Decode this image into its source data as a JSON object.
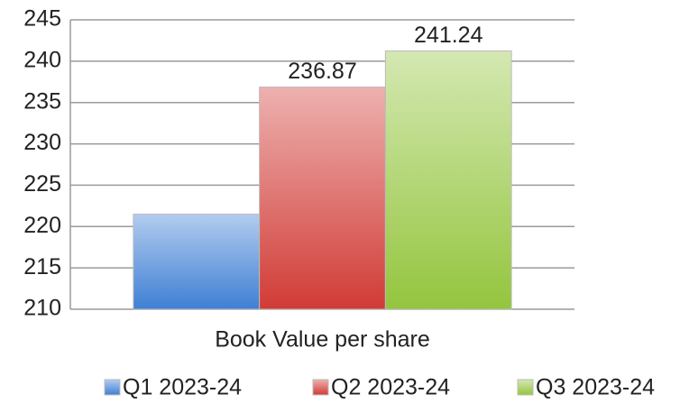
{
  "chart_data": {
    "type": "bar",
    "categories": [
      "Book Value per share"
    ],
    "series": [
      {
        "name": "Q1 2023-24",
        "color": "#3f7fd4",
        "values": [
          221.5
        ]
      },
      {
        "name": "Q2 2023-24",
        "color": "#d13b36",
        "values": [
          236.87
        ],
        "value_labels": [
          "236.87"
        ]
      },
      {
        "name": "Q3 2023-24",
        "color": "#94c53e",
        "values": [
          241.24
        ],
        "value_labels": [
          "241.24"
        ]
      }
    ],
    "ylim": [
      210,
      245
    ],
    "yticks": [
      210,
      215,
      220,
      225,
      230,
      235,
      240,
      245
    ],
    "grid": true,
    "legend": "bottom"
  }
}
